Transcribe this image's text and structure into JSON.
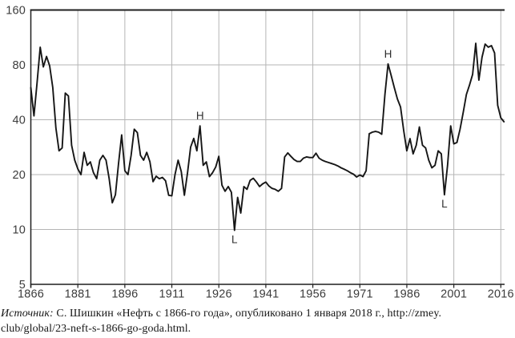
{
  "chart_data": {
    "type": "line",
    "title": "",
    "xlabel": "",
    "ylabel": "",
    "x_range": [
      1866,
      2017
    ],
    "ylim": [
      5,
      160
    ],
    "y_scale": "log2",
    "grid": true,
    "legend": false,
    "y_ticks": [
      "160",
      "80",
      "40",
      "20",
      "10",
      "5"
    ],
    "x_ticks": [
      "1866",
      "1881",
      "1896",
      "1911",
      "1926",
      "1941",
      "1956",
      "1971",
      "1986",
      "2001",
      "2016"
    ],
    "values": [
      60,
      42,
      64,
      100,
      78,
      89,
      79,
      60,
      36,
      27,
      28,
      56,
      54,
      29,
      24,
      21.5,
      20,
      26.5,
      22.5,
      23.5,
      20.5,
      19,
      24,
      25.5,
      24,
      19,
      14,
      15.5,
      23,
      33,
      21,
      20,
      25.5,
      35.5,
      34,
      25.5,
      24,
      26.5,
      23.5,
      18.3,
      19.6,
      19,
      19.3,
      18.5,
      15.4,
      15.3,
      20,
      24,
      20.8,
      15.4,
      20.4,
      28.3,
      31.6,
      27,
      37,
      22.5,
      23.5,
      19.5,
      20.5,
      22,
      25.2,
      17.5,
      16.2,
      17.2,
      16,
      9.9,
      15,
      12.3,
      17.2,
      16.6,
      18.6,
      19.1,
      18.2,
      17.2,
      17.8,
      18.2,
      17.3,
      16.8,
      16.6,
      16.2,
      16.8,
      25,
      26.3,
      25.2,
      24.2,
      23.6,
      23.6,
      24.6,
      25,
      24.8,
      24.8,
      26.2,
      24.6,
      24,
      23.6,
      23.3,
      23,
      22.7,
      22.3,
      21.8,
      21.4,
      21,
      20.5,
      20.1,
      19.4,
      19.9,
      19.5,
      21,
      33.5,
      34.2,
      34.5,
      34.2,
      33.3,
      55,
      81,
      70,
      60,
      52,
      47,
      35,
      27,
      31.5,
      26,
      29,
      36.5,
      29,
      28,
      24,
      21.8,
      22.5,
      27,
      26,
      15.5,
      22.5,
      37,
      29.5,
      30,
      35.5,
      44,
      55,
      62,
      71,
      105,
      66,
      88,
      104,
      100,
      102,
      93,
      48,
      41,
      39
    ],
    "annotations": [
      {
        "label": "H",
        "year": 1920,
        "value": 37,
        "placement": "above"
      },
      {
        "label": "L",
        "year": 1931,
        "value": 9.9,
        "placement": "below"
      },
      {
        "label": "H",
        "year": 1980,
        "value": 81,
        "placement": "above"
      },
      {
        "label": "L",
        "year": 1998,
        "value": 15.5,
        "placement": "below"
      }
    ],
    "colors": {
      "line": "#161616",
      "grid": "#b5b5b5",
      "axis": "#1f1f1f",
      "tick_text": "#3c3c3c"
    }
  },
  "source": {
    "label_italic": "Источник:",
    "line1_rest": " С. Шишкин «Нефть с 1866-го года», опубликовано 1 января 2018 г., http://zmey.",
    "line2": "club/global/23-neft-s-1866-go-goda.html."
  }
}
